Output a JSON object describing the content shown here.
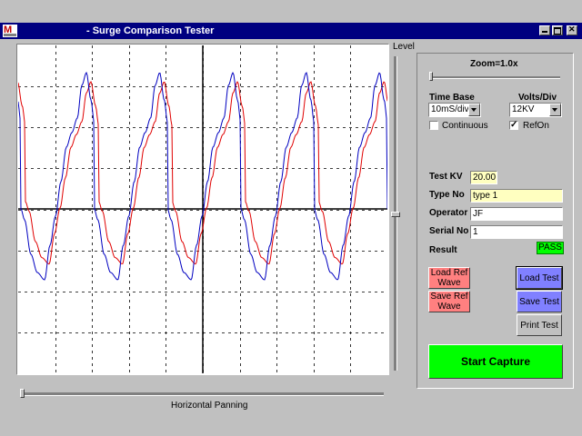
{
  "window": {
    "title": "- Surge Comparison Tester"
  },
  "scope": {
    "level_label": "Level",
    "horizontal_panning_label": "Horizontal Panning"
  },
  "controls": {
    "zoom_label": "Zoom=1.0x",
    "time_base_label": "Time Base",
    "time_base_value": "10mS/div",
    "volts_div_label": "Volts/Div",
    "volts_div_value": "12KV",
    "continuous_label": "Continuous",
    "continuous_checked": false,
    "refon_label": "RefOn",
    "refon_checked": true
  },
  "fields": {
    "test_kv_label": "Test KV",
    "test_kv_value": "20.00",
    "type_no_label": "Type No",
    "type_no_value": "type 1",
    "operator_label": "Operator",
    "operator_value": "JF",
    "serial_no_label": "Serial No",
    "serial_no_value": "1",
    "result_label": "Result",
    "result_value": "PASS"
  },
  "buttons": {
    "load_ref_wave": "Load Ref Wave",
    "save_ref_wave": "Save Ref Wave",
    "load_test": "Load Test",
    "save_test": "Save Test",
    "print_test": "Print Test",
    "start_capture": "Start Capture"
  },
  "colors": {
    "test_wave": "#0000c0",
    "ref_wave": "#e00000",
    "pass": "#00ff00",
    "ref_buttons": "#ff8080",
    "test_buttons": "#8080ff"
  }
}
